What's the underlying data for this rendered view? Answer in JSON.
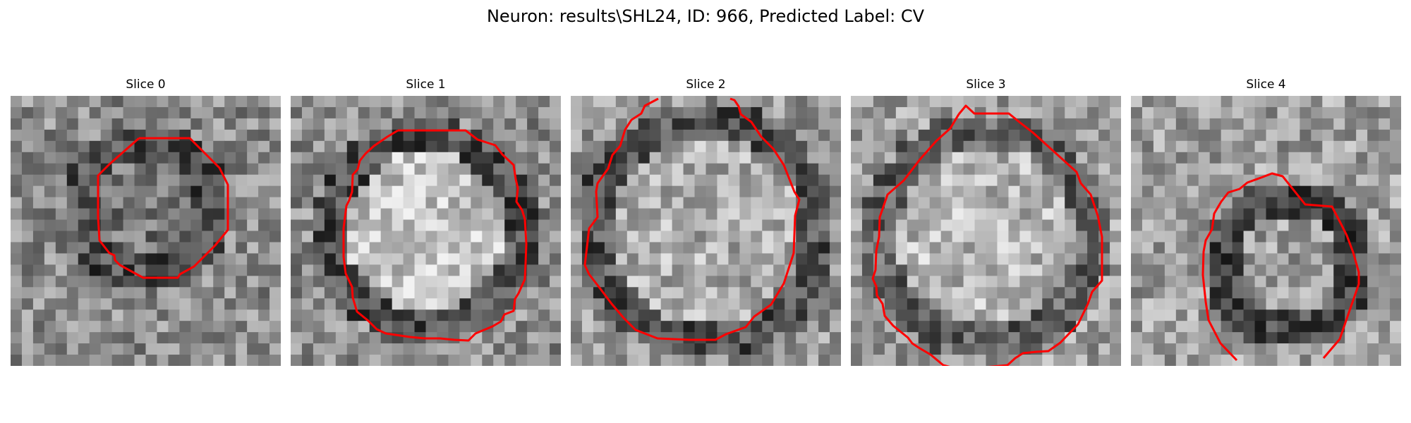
{
  "figure": {
    "title": "Neuron: results\\SHL24, ID: 966, Predicted Label: CV"
  },
  "colors": {
    "background": "#ffffff",
    "contour": "#ff0000",
    "grayscale_min": "#1a1a1a",
    "grayscale_max": "#f2f2f2"
  },
  "panels": [
    {
      "title": "Slice 0",
      "image": "grayscale-microscopy-patch",
      "contour": "closed-octagon",
      "center_brightness": "dark-mottled"
    },
    {
      "title": "Slice 1",
      "image": "grayscale-microscopy-patch",
      "contour": "closed-octagon",
      "center_brightness": "bright"
    },
    {
      "title": "Slice 2",
      "image": "grayscale-microscopy-patch",
      "contour": "open-at-top",
      "center_brightness": "bright-speckled"
    },
    {
      "title": "Slice 3",
      "image": "grayscale-microscopy-patch",
      "contour": "closed-octagon",
      "center_brightness": "bright"
    },
    {
      "title": "Slice 4",
      "image": "grayscale-microscopy-patch",
      "contour": "open-at-bottom",
      "center_brightness": "mixed"
    }
  ]
}
